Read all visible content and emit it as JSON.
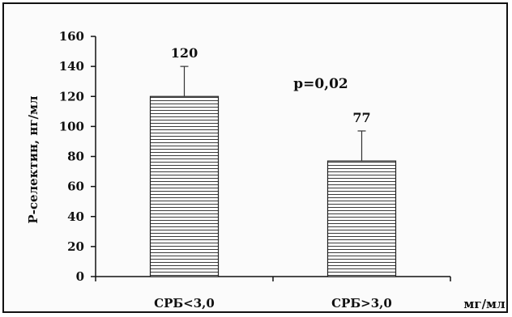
{
  "chart_data": {
    "type": "bar",
    "categories": [
      "СРБ<3,0",
      "СРБ>3,0"
    ],
    "values": [
      120,
      77
    ],
    "error_upper": [
      140,
      97
    ],
    "value_labels": [
      "120",
      "77"
    ],
    "ylabel": "Р-селектин, нг/мл",
    "xunit": "мг/мл",
    "annotation": "p=0,02",
    "ylim": [
      0,
      160
    ],
    "yticks": [
      0,
      20,
      40,
      60,
      80,
      100,
      120,
      140,
      160
    ],
    "grid": false,
    "legend": "none",
    "bar_fill": "horizontal-hatch",
    "colors": {
      "bar_lines": "#333333",
      "bar_background": "#ffffff",
      "axis": "#111111"
    }
  }
}
